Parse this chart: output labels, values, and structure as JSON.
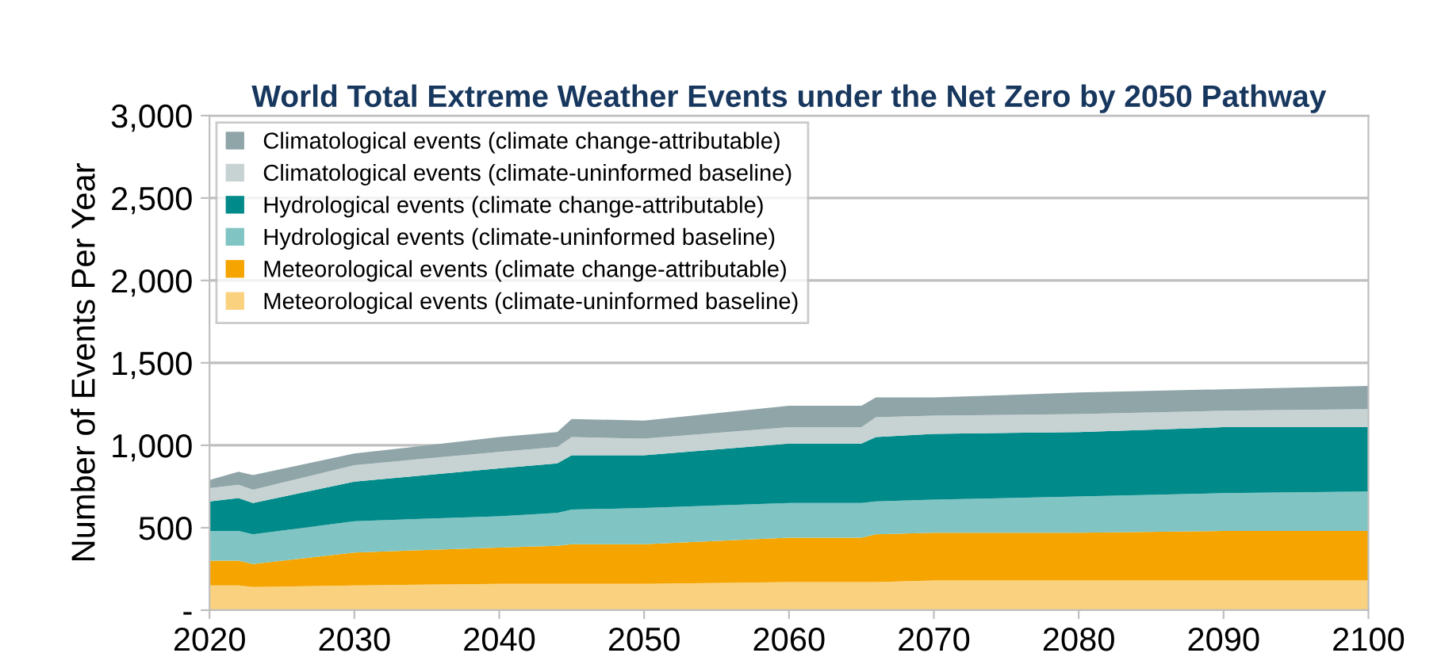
{
  "chart_data": {
    "type": "area",
    "stacked": true,
    "title": "World Total Extreme Weather Events under the Net Zero by 2050 Pathway",
    "ylabel": "Number of Events Per Year",
    "x": [
      2020,
      2022,
      2023,
      2030,
      2040,
      2044,
      2045,
      2050,
      2060,
      2065,
      2066,
      2070,
      2080,
      2090,
      2100
    ],
    "series": [
      {
        "name": "Meteorological events (climate-uninformed baseline)",
        "color": "#fad27f",
        "values": [
          150,
          150,
          140,
          150,
          160,
          160,
          160,
          160,
          170,
          170,
          170,
          180,
          180,
          180,
          180
        ]
      },
      {
        "name": "Meteorological events (climate change-attributable)",
        "color": "#f5a400",
        "values": [
          150,
          150,
          140,
          200,
          220,
          230,
          240,
          240,
          270,
          270,
          290,
          290,
          290,
          300,
          300
        ]
      },
      {
        "name": "Hydrological events (climate-uninformed baseline)",
        "color": "#80c5c4",
        "values": [
          180,
          180,
          180,
          190,
          190,
          200,
          210,
          220,
          210,
          210,
          200,
          200,
          220,
          230,
          240
        ]
      },
      {
        "name": "Hydrological events (climate change-attributable)",
        "color": "#008b8a",
        "values": [
          180,
          200,
          190,
          240,
          290,
          300,
          330,
          320,
          360,
          360,
          390,
          400,
          390,
          400,
          390
        ]
      },
      {
        "name": "Climatological events (climate-uninformed baseline)",
        "color": "#c7d2d3",
        "values": [
          80,
          80,
          80,
          100,
          100,
          100,
          110,
          100,
          100,
          100,
          120,
          110,
          110,
          100,
          110
        ]
      },
      {
        "name": "Climatological events (climate change-attributable)",
        "color": "#8fa5a8",
        "values": [
          50,
          80,
          90,
          70,
          90,
          90,
          110,
          110,
          130,
          130,
          120,
          110,
          130,
          130,
          140
        ]
      }
    ],
    "xlim": [
      2020,
      2100
    ],
    "xticks": [
      2020,
      2030,
      2040,
      2050,
      2060,
      2070,
      2080,
      2090,
      2100
    ],
    "ylim": [
      0,
      3000
    ],
    "yticks": [
      {
        "value": 0,
        "label": "-"
      },
      500,
      {
        "value": 1000,
        "label": "1,000"
      },
      {
        "value": 1500,
        "label": "1,500"
      },
      {
        "value": 2000,
        "label": "2,000"
      },
      {
        "value": 2500,
        "label": "2,500"
      },
      {
        "value": 3000,
        "label": "3,000"
      }
    ],
    "grid": "y",
    "legend": "top left"
  }
}
